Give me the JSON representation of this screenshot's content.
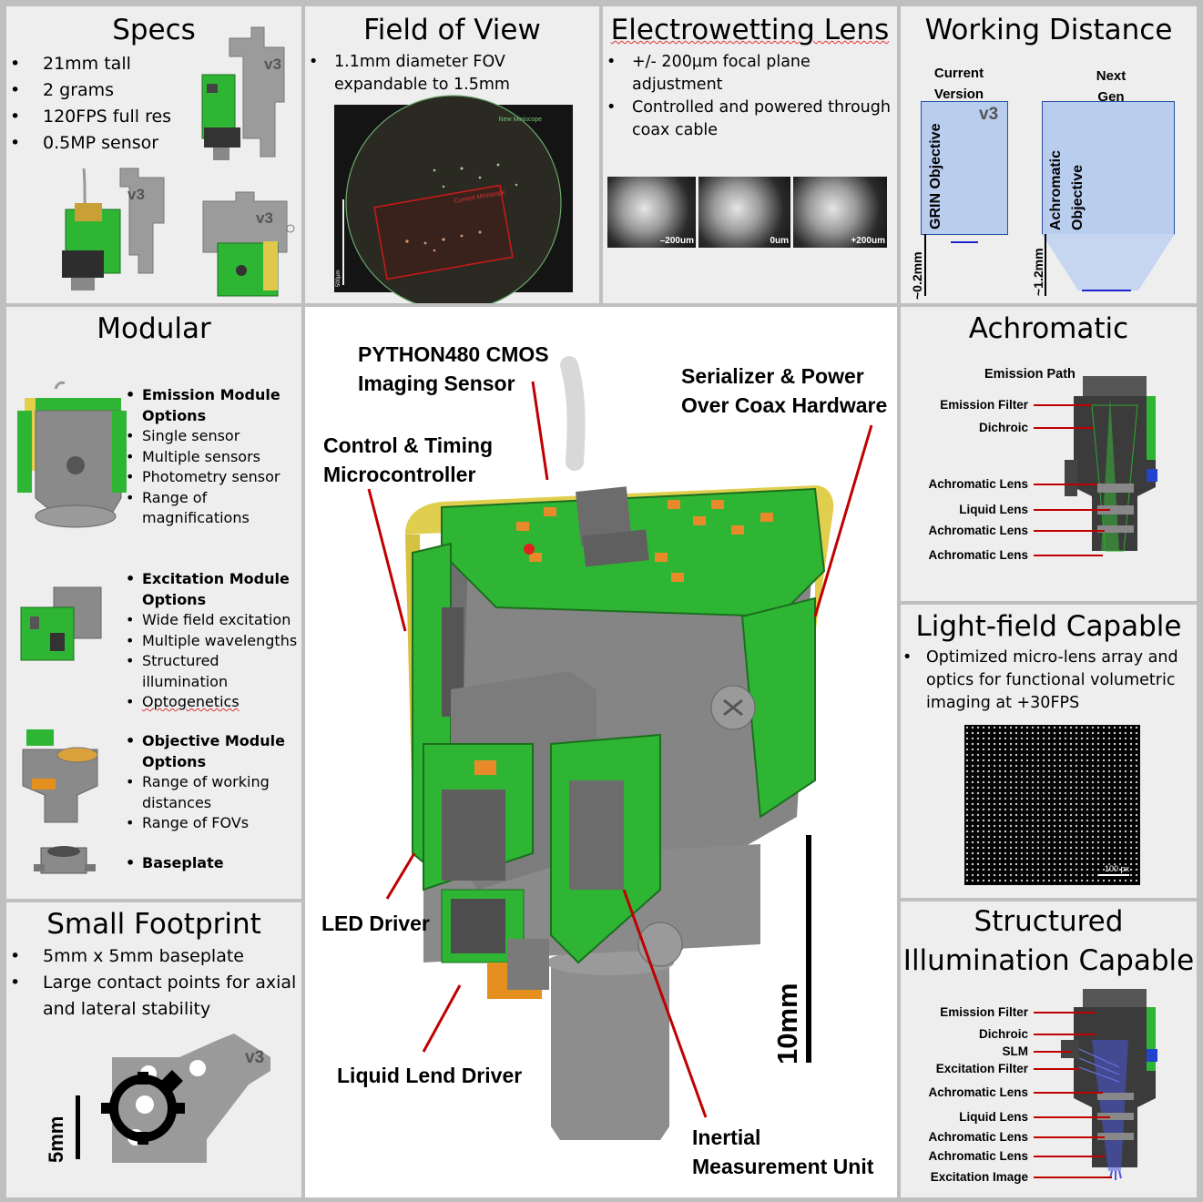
{
  "specs": {
    "title": "Specs",
    "items": [
      "21mm tall",
      "2 grams",
      "120FPS full res",
      "0.5MP sensor"
    ],
    "version_tag": "v3"
  },
  "fov": {
    "title": "Field of View",
    "items": [
      "1.1mm diameter FOV expandable to 1.5mm"
    ],
    "new_label": "New Miniscope",
    "current_label": "Current Miniscope",
    "scale_label": "500µm"
  },
  "ewl": {
    "title": "Electrowetting Lens",
    "items": [
      "+/- 200µm focal plane adjustment",
      "Controlled and powered through coax cable"
    ],
    "images": [
      "–200um",
      "0um",
      "+200um"
    ]
  },
  "wd": {
    "title": "Working Distance",
    "current_label": "Current Version",
    "next_label": "Next Gen",
    "current_objective": "GRIN Objective",
    "next_objective_line1": "Achromatic",
    "next_objective_line2": "Objective",
    "current_distance": "~0.2mm",
    "next_distance": "~1.2mm",
    "version_tag": "v3"
  },
  "modular": {
    "title": "Modular",
    "emission": {
      "heading": "Emission Module Options",
      "items": [
        "Single sensor",
        "Multiple sensors",
        "Photometry sensor",
        "Range of magnifications"
      ]
    },
    "excitation": {
      "heading": "Excitation Module Options",
      "items": [
        "Wide field excitation",
        "Multiple wavelengths",
        "Structured illumination",
        "Optogenetics"
      ]
    },
    "objective": {
      "heading": "Objective Module Options",
      "items": [
        "Range of working distances",
        "Range of FOVs"
      ]
    },
    "baseplate": "Baseplate"
  },
  "center": {
    "labels": {
      "sensor": [
        "PYTHON480 CMOS",
        "Imaging Sensor"
      ],
      "serializer": [
        "Serializer & Power",
        "Over Coax Hardware"
      ],
      "controller": [
        "Control & Timing",
        "Microcontroller"
      ],
      "led": "LED Driver",
      "liquid": "Liquid Lend Driver",
      "imu": [
        "Inertial",
        "Measurement Unit"
      ],
      "scale": "10mm"
    }
  },
  "achromatic": {
    "title": "Achromatic",
    "header": "Emission Path",
    "labels": [
      "Emission Filter",
      "Dichroic",
      "Achromatic Lens",
      "Liquid Lens",
      "Achromatic Lens",
      "Achromatic Lens"
    ]
  },
  "lightfield": {
    "title": "Light-field Capable",
    "items": [
      "Optimized micro-lens array and optics for functional volumetric imaging at +30FPS"
    ],
    "scale_label": "100 px"
  },
  "footprint": {
    "title": "Small Footprint",
    "items": [
      "5mm x 5mm baseplate",
      "Large contact points for axial and lateral stability"
    ],
    "version_tag": "v3",
    "scale_label": "5mm"
  },
  "structured": {
    "title_line1": "Structured",
    "title_line2": "Illumination Capable",
    "labels": [
      "Emission Filter",
      "Dichroic",
      "SLM",
      "Excitation Filter",
      "Achromatic Lens",
      "Liquid Lens",
      "Achromatic Lens",
      "Achromatic Lens",
      "Excitation Image"
    ]
  },
  "colors": {
    "pcb_green": "#2fb534",
    "housing_gray": "#8a8a8a",
    "leader_red": "#c00000",
    "flex_yellow": "#e3cf4a",
    "lens_blue": "#b9cdee"
  }
}
